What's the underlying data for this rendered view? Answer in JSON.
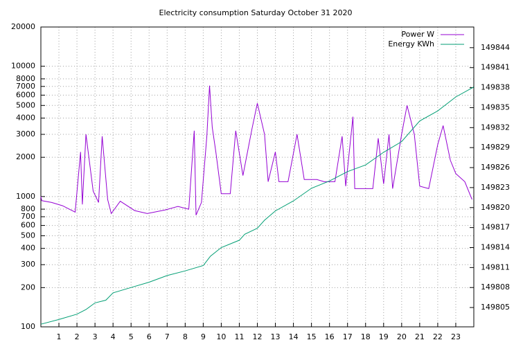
{
  "chart_data": {
    "type": "line",
    "title": "Electricity consumption Saturday October 31 2020",
    "xlim": [
      0,
      24
    ],
    "xticks": [
      1,
      2,
      3,
      4,
      5,
      6,
      7,
      8,
      9,
      10,
      11,
      12,
      13,
      14,
      15,
      16,
      17,
      18,
      19,
      20,
      21,
      22,
      23
    ],
    "ylim": [
      100,
      20000
    ],
    "ylog": true,
    "yticks": [
      100,
      200,
      300,
      400,
      500,
      600,
      700,
      800,
      1000,
      2000,
      3000,
      4000,
      5000,
      6000,
      7000,
      8000,
      10000,
      20000
    ],
    "y2lim": [
      149802.1,
      149847.1
    ],
    "y2ticks": [
      149805,
      149808,
      149811,
      149814,
      149817,
      149820,
      149823,
      149826,
      149829,
      149832,
      149835,
      149838,
      149841,
      149844
    ],
    "grid": true,
    "legend": "top-right",
    "series": [
      {
        "name": "Power W",
        "color": "#9400d3",
        "x": [
          0,
          0.05,
          0.6,
          1.2,
          1.9,
          2.2,
          2.3,
          2.5,
          2.9,
          3.2,
          3.4,
          3.7,
          3.9,
          4.4,
          5.2,
          5.9,
          6.9,
          7.6,
          8.2,
          8.5,
          8.6,
          8.9,
          9.2,
          9.35,
          9.5,
          9.7,
          10.0,
          10.5,
          10.8,
          11.2,
          11.7,
          12.0,
          12.4,
          12.6,
          13.0,
          13.2,
          13.7,
          14.2,
          14.6,
          15.3,
          15.7,
          16.3,
          16.7,
          16.9,
          17.3,
          17.4,
          18.4,
          18.7,
          19.0,
          19.3,
          19.5,
          20.0,
          20.3,
          20.7,
          21.0,
          21.5,
          22.0,
          22.3,
          22.7,
          23.0,
          23.5,
          23.9
        ],
        "values": [
          1000,
          930,
          900,
          850,
          760,
          2200,
          870,
          3000,
          1100,
          900,
          2900,
          950,
          740,
          920,
          780,
          740,
          790,
          840,
          800,
          3200,
          720,
          900,
          2900,
          7100,
          3400,
          2200,
          1050,
          1050,
          3200,
          1450,
          3300,
          5200,
          3000,
          1300,
          2200,
          1300,
          1300,
          3000,
          1350,
          1350,
          1300,
          1300,
          2900,
          1200,
          4100,
          1150,
          1150,
          2800,
          1250,
          3000,
          1150,
          3000,
          5000,
          3000,
          1200,
          1150,
          2500,
          3500,
          1900,
          1500,
          1300,
          950
        ]
      },
      {
        "name": "Energy KWh",
        "color": "#009e73",
        "axis": "y2",
        "x": [
          0,
          1,
          2,
          2.5,
          3,
          3.6,
          4,
          5,
          6,
          7,
          8,
          9,
          9.4,
          10,
          11,
          11.3,
          12,
          12.4,
          13,
          14,
          15,
          16,
          17,
          18,
          19,
          20,
          21,
          22,
          23,
          24
        ],
        "values": [
          149802.5,
          149803.2,
          149804,
          149804.7,
          149805.7,
          149806.1,
          149807.2,
          149808,
          149808.8,
          149809.8,
          149810.5,
          149811.3,
          149812.7,
          149814,
          149815.1,
          149816,
          149816.9,
          149818.1,
          149819.5,
          149821,
          149822.9,
          149824,
          149825.4,
          149826.4,
          149828.3,
          149829.9,
          149833,
          149834.5,
          149836.6,
          149838.1
        ]
      }
    ]
  }
}
